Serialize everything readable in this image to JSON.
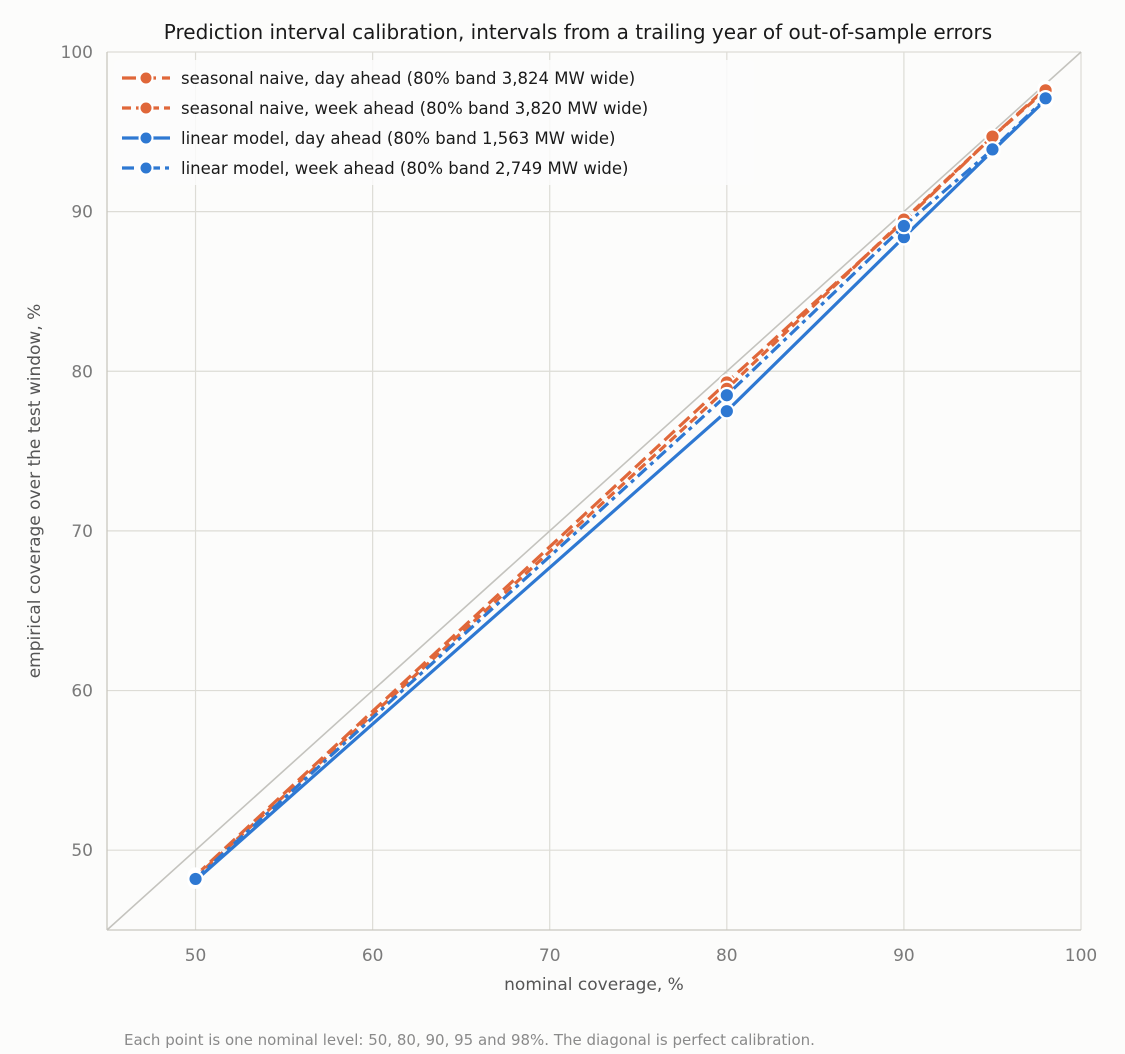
{
  "chart_data": {
    "type": "line",
    "title": "Prediction interval calibration, intervals from a trailing year of out-of-sample errors",
    "xlabel": "nominal coverage, %",
    "ylabel": "empirical coverage over the test window, %",
    "xlim": [
      45,
      100
    ],
    "ylim": [
      45,
      100
    ],
    "xticks": [
      50,
      60,
      70,
      80,
      90,
      100
    ],
    "yticks": [
      50,
      60,
      70,
      80,
      90,
      100
    ],
    "grid": true,
    "legend_position": "top-left",
    "diagonal": true,
    "footnote": "Each point is one nominal level: 50, 80, 90, 95 and 98%. The diagonal is perfect calibration.",
    "series": [
      {
        "name": "seasonal naive, day ahead (80% band 3,824 MW wide)",
        "color": "#e0673a",
        "dash": "long",
        "x": [
          50,
          80,
          90,
          95,
          98
        ],
        "y": [
          48.4,
          79.3,
          89.4,
          94.7,
          97.7
        ]
      },
      {
        "name": "seasonal naive, week ahead (80% band 3,820 MW wide)",
        "color": "#e0673a",
        "dash": "short",
        "x": [
          50,
          80,
          90,
          95,
          98
        ],
        "y": [
          48.3,
          78.9,
          89.5,
          94.7,
          97.6
        ]
      },
      {
        "name": "linear model, day ahead (80% band 1,563 MW wide)",
        "color": "#2e78d2",
        "dash": "solid",
        "x": [
          50,
          80,
          90,
          95,
          98
        ],
        "y": [
          48.1,
          77.5,
          88.4,
          93.8,
          97.0
        ]
      },
      {
        "name": "linear model, week ahead (80% band 2,749 MW wide)",
        "color": "#2e78d2",
        "dash": "dashdot",
        "x": [
          50,
          80,
          90,
          95,
          98
        ],
        "y": [
          48.2,
          78.5,
          89.1,
          93.9,
          97.1
        ]
      }
    ]
  }
}
